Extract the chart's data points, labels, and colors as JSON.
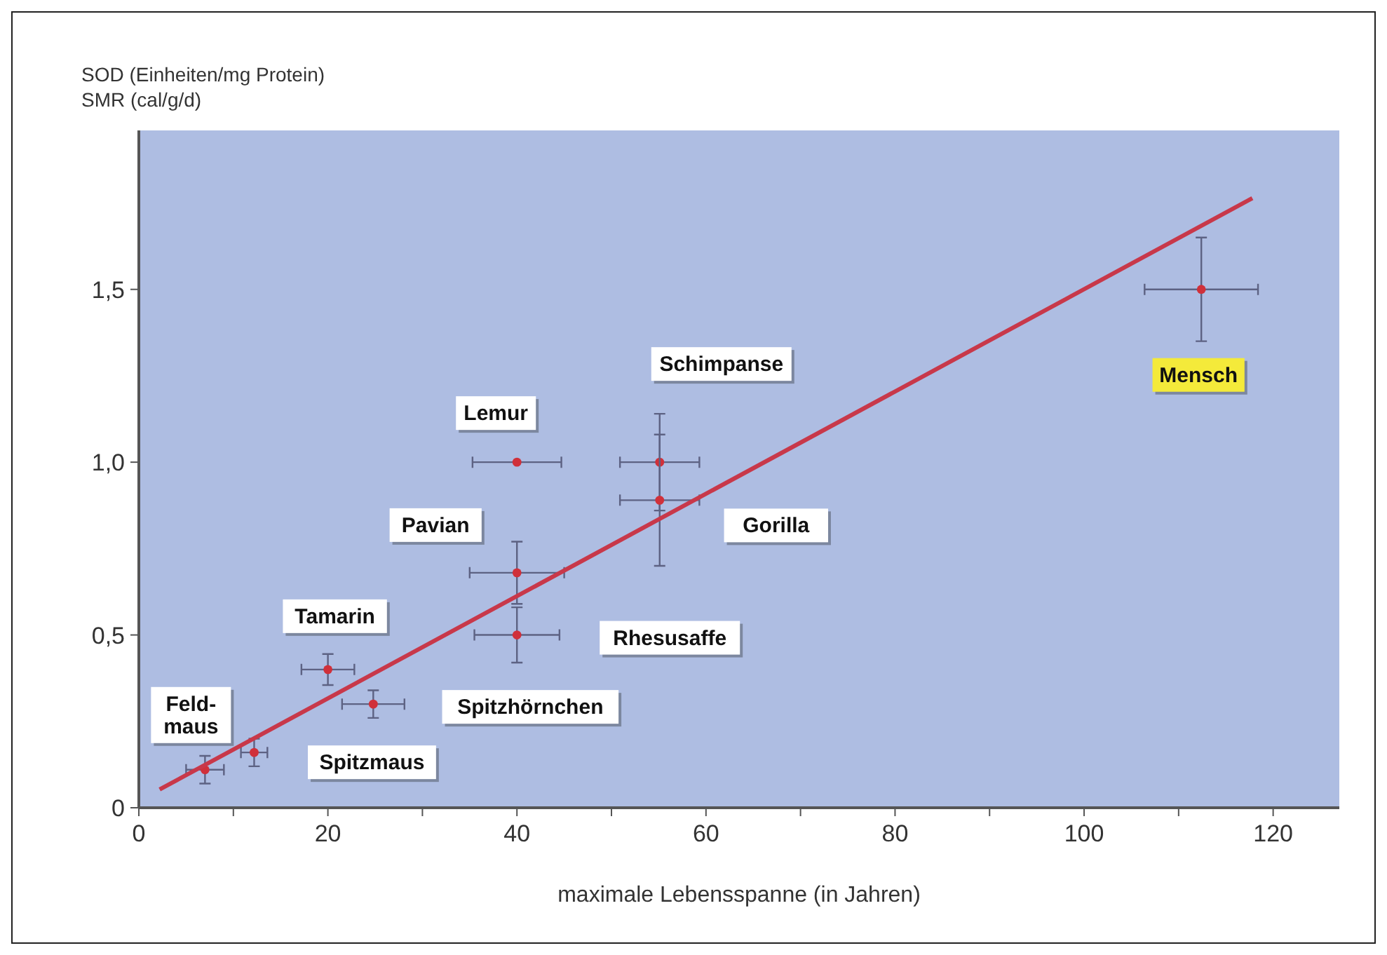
{
  "chart_data": {
    "type": "scatter",
    "xlabel": "maximale Lebensspanne (in Jahren)",
    "ylabel": "SOD (Einheiten/mg Protein)\nSMR (cal/g/d)",
    "xlim": [
      0,
      127
    ],
    "ylim": [
      0,
      1.96
    ],
    "xticks": [
      0,
      {
        "value": 10,
        "label": null
      },
      20,
      {
        "value": 30,
        "label": null
      },
      40,
      {
        "value": 50,
        "label": null
      },
      60,
      {
        "value": 70,
        "label": null
      },
      80,
      {
        "value": 90,
        "label": null
      },
      100,
      {
        "value": 110,
        "label": null
      },
      120
    ],
    "yticks": [
      0,
      {
        "value": 0.5,
        "label": "0,5"
      },
      {
        "value": 1,
        "label": "1,0"
      },
      {
        "value": 1.5,
        "label": "1,5"
      }
    ],
    "grid": false,
    "marker": "circle",
    "series": [
      {
        "color": "#d0303a",
        "x": [
          7,
          12.2,
          20,
          24.8,
          40,
          40,
          40,
          55.1,
          55.1,
          112.4
        ],
        "values": [
          0.11,
          0.16,
          0.4,
          0.3,
          0.68,
          0.5,
          1.0,
          1.0,
          0.89,
          1.5
        ],
        "errors": [
          0.04,
          0.04,
          0.045,
          0.04,
          0.09,
          0.08,
          null,
          0.14,
          0.19,
          0.15
        ],
        "xerrors": [
          2,
          1.4,
          2.8,
          3.3,
          5,
          4.5,
          4.7,
          4.2,
          4.2,
          6
        ]
      },
      {
        "type": "line",
        "marker": "none",
        "color": "#c8384a",
        "x": [
          2.2,
          117.8
        ],
        "values": [
          0.053,
          1.764
        ]
      }
    ],
    "annotations": [
      "Feld-\nmaus",
      "Spitzmaus",
      "Tamarin",
      "Spitzhörnchen",
      "Pavian",
      "Rhesusaffe",
      "Lemur",
      "Schimpanse",
      "Gorilla",
      "Mensch"
    ]
  }
}
